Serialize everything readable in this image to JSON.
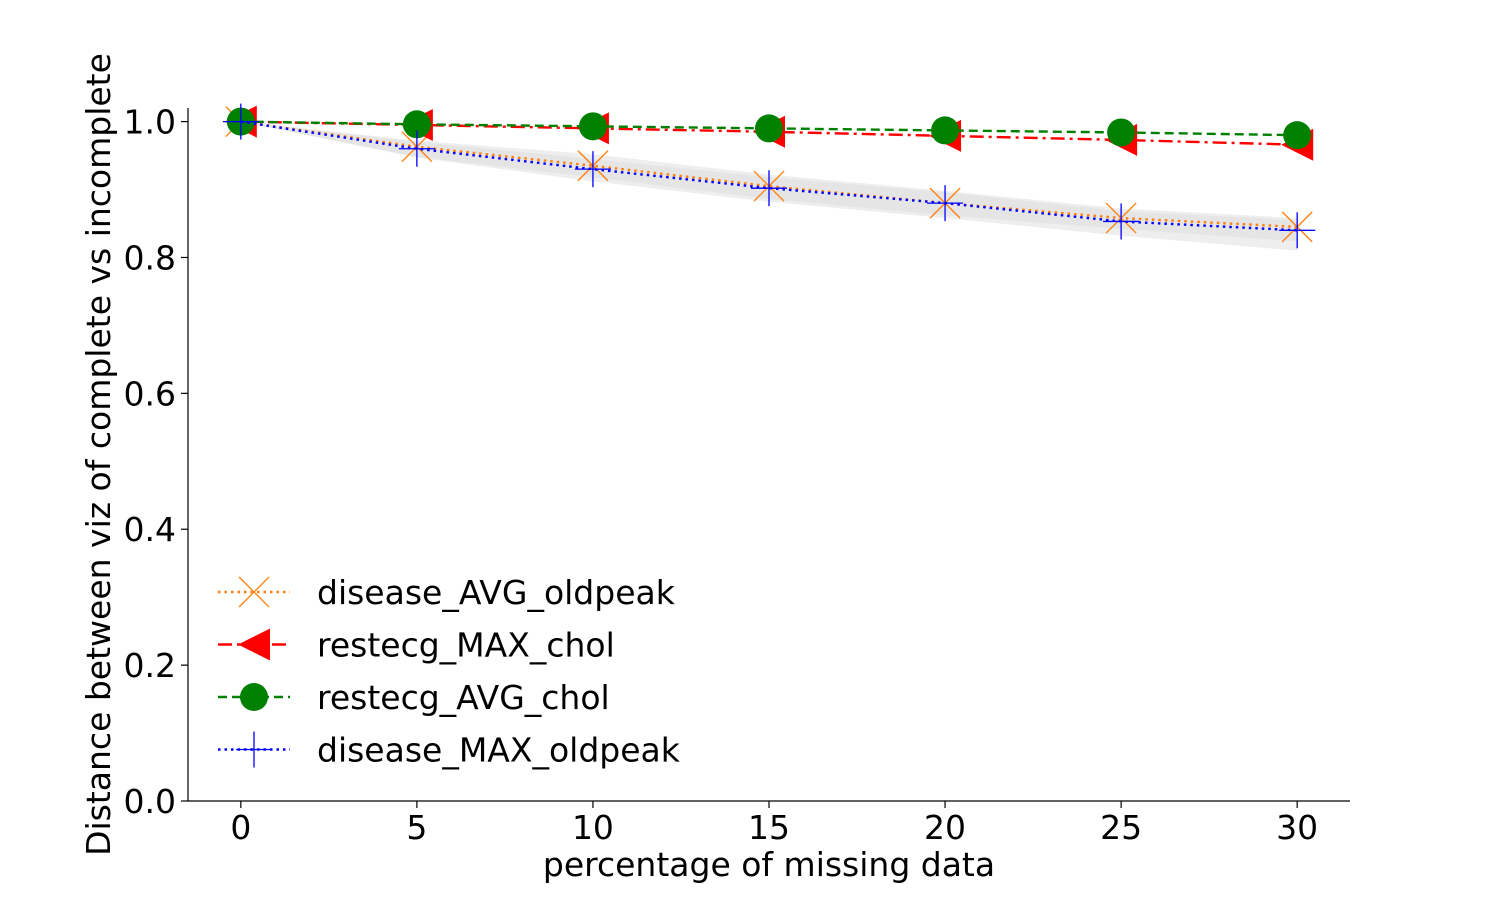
{
  "chart_data": {
    "type": "line",
    "title": "",
    "xlabel": "percentage of missing data",
    "ylabel": "Distance between viz of complete vs incomplete",
    "x": [
      0,
      5,
      10,
      15,
      20,
      25,
      30
    ],
    "xticks": [
      0,
      5,
      10,
      15,
      20,
      25,
      30
    ],
    "xtick_labels": [
      "0",
      "5",
      "10",
      "15",
      "20",
      "25",
      "30"
    ],
    "yticks": [
      0.0,
      0.2,
      0.4,
      0.6,
      0.8,
      1.0
    ],
    "ytick_labels": [
      "0.0",
      "0.2",
      "0.4",
      "0.6",
      "0.8",
      "1.0"
    ],
    "xlim": [
      -1.5,
      31.5
    ],
    "ylim": [
      0.0,
      1.02
    ],
    "grid": false,
    "legend_position": "lower-left",
    "series": [
      {
        "name": "disease_AVG_oldpeak",
        "color": "#ff7f0e",
        "line_style": "dotted",
        "marker": "x",
        "values": [
          1.0,
          0.963,
          0.935,
          0.905,
          0.88,
          0.858,
          0.845
        ]
      },
      {
        "name": "restecg_MAX_chol",
        "color": "#ff0000",
        "line_style": "dashdot",
        "marker": "triangle-left",
        "values": [
          1.0,
          0.995,
          0.99,
          0.985,
          0.979,
          0.973,
          0.966
        ]
      },
      {
        "name": "restecg_AVG_chol",
        "color": "#008000",
        "line_style": "dashed",
        "marker": "circle",
        "values": [
          1.0,
          0.996,
          0.993,
          0.99,
          0.987,
          0.984,
          0.98
        ]
      },
      {
        "name": "disease_MAX_oldpeak",
        "color": "#0000ff",
        "line_style": "dotted",
        "marker": "plus",
        "values": [
          1.0,
          0.96,
          0.93,
          0.902,
          0.88,
          0.853,
          0.84
        ]
      }
    ],
    "confidence_bands": [
      {
        "series": "disease_AVG_oldpeak",
        "upper": [
          1.0,
          0.972,
          0.952,
          0.922,
          0.898,
          0.872,
          0.858
        ],
        "lower": [
          1.0,
          0.948,
          0.918,
          0.886,
          0.862,
          0.842,
          0.824
        ]
      },
      {
        "series": "disease_MAX_oldpeak",
        "upper": [
          1.0,
          0.97,
          0.945,
          0.918,
          0.896,
          0.868,
          0.855
        ],
        "lower": [
          1.0,
          0.947,
          0.912,
          0.882,
          0.858,
          0.832,
          0.81
        ]
      }
    ],
    "band_color": "#d9d9d9"
  }
}
